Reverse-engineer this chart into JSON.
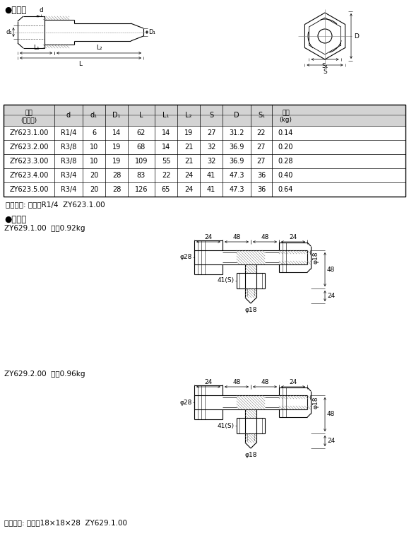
{
  "title1": "●管接头",
  "title2": "●管接头",
  "table_headers": [
    "代号\n(订货号)",
    "d",
    "d₁",
    "D₁",
    "L",
    "L₁",
    "L₂",
    "S",
    "D",
    "S₁",
    "重量\n(kg)"
  ],
  "table_rows": [
    [
      "ZY623.1.00",
      "R1/4",
      "6",
      "14",
      "62",
      "14",
      "19",
      "27",
      "31.2",
      "22",
      "0.14"
    ],
    [
      "ZY623.2.00",
      "R3/8",
      "10",
      "19",
      "68",
      "14",
      "21",
      "32",
      "36.9",
      "27",
      "0.20"
    ],
    [
      "ZY623.3.00",
      "R3/8",
      "10",
      "19",
      "109",
      "55",
      "21",
      "32",
      "36.9",
      "27",
      "0.28"
    ],
    [
      "ZY623.4.00",
      "R3/4",
      "20",
      "28",
      "83",
      "22",
      "24",
      "41",
      "47.3",
      "36",
      "0.40"
    ],
    [
      "ZY623.5.00",
      "R3/4",
      "20",
      "28",
      "126",
      "65",
      "24",
      "41",
      "47.3",
      "36",
      "0.64"
    ]
  ],
  "label1": "标记示例: 管接头R1/4  ZY623.1.00",
  "zy629_1_label": "ZY629.1.00  重量0.92kg",
  "zy629_2_label": "ZY629.2.00  重量0.96kg",
  "label2": "标记示例: 管接头18×18×28  ZY629.1.00",
  "bg_color": "#ffffff",
  "table_header_bg": "#d0d0d0",
  "table_line_color": "#000000",
  "text_color": "#000000",
  "drawing_color": "#000000"
}
